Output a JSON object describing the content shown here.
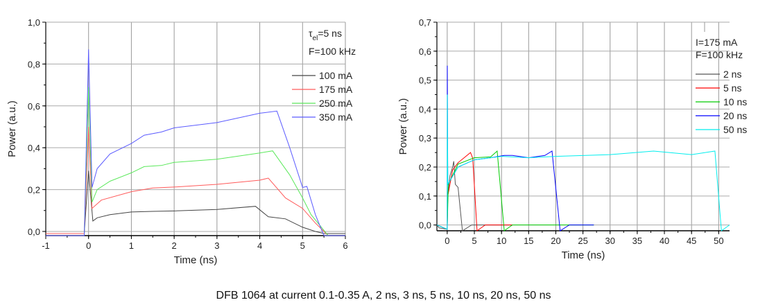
{
  "caption": "DFB 1064 at current 0.1-0.35 A, 2 ns, 3 ns, 5 ns, 10 ns, 20 ns, 50 ns",
  "chart_data": [
    {
      "type": "line",
      "title": "",
      "xlabel": "Time (ns)",
      "ylabel": "Power (a.u.)",
      "xlim": [
        -1,
        6
      ],
      "ylim": [
        -0.02,
        1.0
      ],
      "xticks": [
        -1,
        0,
        1,
        2,
        3,
        4,
        5,
        6
      ],
      "xtick_labels": [
        "-1",
        "0",
        "1",
        "2",
        "3",
        "4",
        "5",
        "6"
      ],
      "yticks": [
        0,
        0.2,
        0.4,
        0.6,
        0.8,
        1.0
      ],
      "ytick_labels": [
        "0,0",
        "0,2",
        "0,4",
        "0,6",
        "0,8",
        "1,0"
      ],
      "grid": true,
      "legend_position": "top-right",
      "annotation": {
        "tau": "τ",
        "sub": "el",
        "rest": "=5 ns",
        "freq": "F=100 kHz"
      },
      "series": [
        {
          "name": "100 mA",
          "color": "#444444",
          "x": [
            -1,
            -0.1,
            0,
            0.1,
            0.2,
            0.5,
            1,
            1.5,
            2,
            3,
            3.9,
            4.2,
            4.6,
            5,
            5.3,
            5.5,
            6
          ],
          "y": [
            -0.01,
            -0.01,
            0.29,
            0.05,
            0.065,
            0.08,
            0.093,
            0.096,
            0.098,
            0.105,
            0.12,
            0.07,
            0.06,
            0.02,
            0,
            -0.01,
            -0.01
          ]
        },
        {
          "name": "175 mA",
          "color": "#ff5a5a",
          "x": [
            -1,
            -0.1,
            0,
            0.08,
            0.3,
            1,
            1.5,
            2,
            3,
            4,
            4.2,
            4.6,
            5,
            5.3,
            5.6,
            6
          ],
          "y": [
            -0.01,
            -0.01,
            0.5,
            0.11,
            0.15,
            0.19,
            0.208,
            0.212,
            0.225,
            0.245,
            0.255,
            0.16,
            0.11,
            0.04,
            -0.02,
            -0.02
          ]
        },
        {
          "name": "250 mA",
          "color": "#5ae85a",
          "x": [
            -1,
            -0.1,
            0,
            0.08,
            0.2,
            0.5,
            1,
            1.3,
            1.7,
            2,
            3,
            4,
            4.3,
            4.7,
            5,
            5.2,
            5.6,
            6
          ],
          "y": [
            -0.02,
            -0.02,
            0.69,
            0.14,
            0.2,
            0.24,
            0.28,
            0.31,
            0.315,
            0.33,
            0.345,
            0.375,
            0.385,
            0.27,
            0.16,
            0.08,
            -0.02,
            -0.02
          ]
        },
        {
          "name": "350 mA",
          "color": "#5a5aff",
          "x": [
            -1,
            -0.1,
            0,
            0.08,
            0.2,
            0.5,
            1,
            1.3,
            1.7,
            2,
            3,
            4,
            4.4,
            4.7,
            5,
            5.1,
            5.3,
            5.5,
            6
          ],
          "y": [
            -0.02,
            -0.02,
            0.87,
            0.21,
            0.3,
            0.37,
            0.42,
            0.46,
            0.475,
            0.495,
            0.52,
            0.565,
            0.575,
            0.4,
            0.21,
            0.215,
            0.08,
            -0.02,
            -0.02
          ]
        }
      ]
    },
    {
      "type": "line",
      "title": "",
      "xlabel": "Time (ns)",
      "ylabel": "Power (a.u.)",
      "xlim": [
        -1.9,
        52
      ],
      "ylim": [
        -0.02,
        0.7
      ],
      "xticks": [
        0,
        5,
        10,
        15,
        20,
        25,
        30,
        35,
        40,
        45,
        50
      ],
      "xtick_labels": [
        "0",
        "5",
        "10",
        "15",
        "20",
        "25",
        "30",
        "35",
        "40",
        "45",
        "50"
      ],
      "yticks": [
        0,
        0.1,
        0.2,
        0.3,
        0.4,
        0.5,
        0.6,
        0.7
      ],
      "ytick_labels": [
        "0,0",
        "0,1",
        "0,2",
        "0,3",
        "0,4",
        "0,5",
        "0,6",
        "0,7"
      ],
      "grid": true,
      "legend_position": "top-right",
      "annotation": {
        "current": "I=175 mA",
        "freq": "F=100 kHz"
      },
      "series": [
        {
          "name": "2 ns",
          "color": "#555555",
          "x": [
            -1.9,
            -1.5,
            0,
            0.1,
            0.5,
            1,
            1.2,
            1.5,
            2,
            2.8,
            4.5,
            12
          ],
          "y": [
            0,
            -0.01,
            -0.015,
            0.1,
            0.17,
            0.2,
            0.22,
            0.14,
            0.13,
            -0.02,
            0,
            0
          ]
        },
        {
          "name": "5 ns",
          "color": "#ff0000",
          "x": [
            -1.9,
            0,
            0.1,
            1,
            2,
            4.3,
            4.7,
            5.5,
            7,
            12
          ],
          "y": [
            0,
            -0.015,
            0.1,
            0.19,
            0.215,
            0.25,
            0.23,
            -0.02,
            0,
            0
          ]
        },
        {
          "name": "10 ns",
          "color": "#00cc00",
          "x": [
            -1.9,
            0,
            0.2,
            2,
            5,
            8,
            9.2,
            10.5,
            12,
            27
          ],
          "y": [
            0,
            -0.015,
            0.14,
            0.21,
            0.232,
            0.235,
            0.255,
            -0.02,
            0,
            0
          ]
        },
        {
          "name": "20 ns",
          "color": "#0000ff",
          "x": [
            -1.9,
            0,
            0.02,
            0.1,
            2,
            5,
            8,
            10.5,
            12,
            15,
            18,
            19.3,
            20.8,
            22.5,
            27
          ],
          "y": [
            0,
            -0.015,
            0.55,
            0.14,
            0.2,
            0.225,
            0.232,
            0.24,
            0.24,
            0.232,
            0.24,
            0.255,
            -0.02,
            0,
            0
          ]
        },
        {
          "name": "50 ns",
          "color": "#00eeee",
          "x": [
            -1.9,
            0,
            0.02,
            0.1,
            2,
            5,
            8,
            10,
            15,
            20,
            30,
            38,
            45,
            49.3,
            50.5,
            52
          ],
          "y": [
            0,
            -0.015,
            0.45,
            0.14,
            0.2,
            0.225,
            0.232,
            0.237,
            0.232,
            0.237,
            0.243,
            0.255,
            0.243,
            0.255,
            -0.02,
            0
          ]
        }
      ]
    }
  ]
}
